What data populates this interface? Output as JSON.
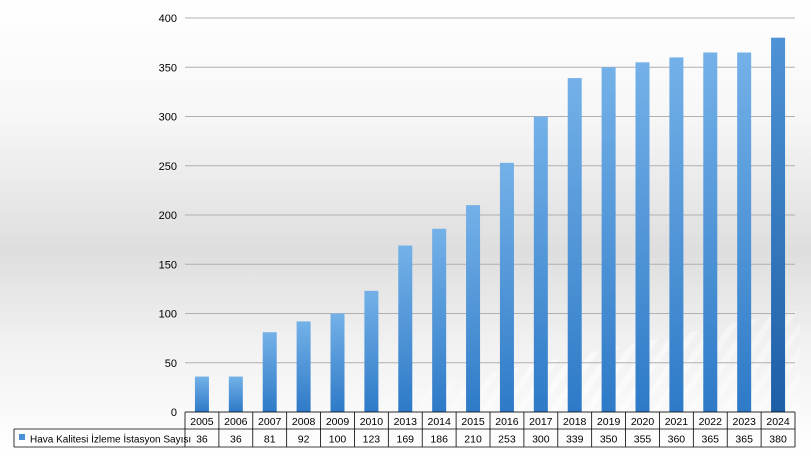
{
  "chart_data": {
    "type": "bar",
    "categories": [
      "2005",
      "2006",
      "2007",
      "2008",
      "2009",
      "2010",
      "2013",
      "2014",
      "2015",
      "2016",
      "2017",
      "2018",
      "2019",
      "2020",
      "2021",
      "2022",
      "2023",
      "2024"
    ],
    "series": [
      {
        "name": "Hava Kalitesi İzleme İstasyon Sayısı",
        "values": [
          36,
          36,
          81,
          92,
          100,
          123,
          169,
          186,
          210,
          253,
          300,
          339,
          350,
          355,
          360,
          365,
          365,
          380
        ]
      }
    ],
    "ylim": [
      0,
      400
    ],
    "yticks": [
      0,
      50,
      100,
      150,
      200,
      250,
      300,
      350,
      400
    ],
    "grid": true,
    "legend_placement": "bottom-left data table",
    "colors": {
      "bar_top": "#74b1e8",
      "bar_bottom": "#2e7ac7",
      "bar_highlight_top": "#4f93d6",
      "bar_highlight_bottom": "#1d5fa6",
      "grid": "#b0b0b0",
      "legend_key": "#4a90d9"
    }
  }
}
